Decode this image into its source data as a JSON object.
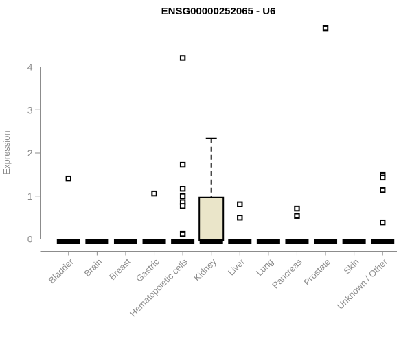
{
  "chart_data": {
    "type": "boxplot",
    "title": "ENSG00000252065 - U6",
    "xlabel": "",
    "ylabel": "Expression",
    "ylim": [
      0,
      4
    ],
    "yticks": [
      "0",
      "1",
      "2",
      "3",
      "4"
    ],
    "grid": false,
    "legend": null,
    "categories": [
      "Bladder",
      "Brain",
      "Breast",
      "Gastric",
      "Hematopoietic cells",
      "Kidney",
      "Liver",
      "Lung",
      "Pancreas",
      "Prostate",
      "Skin",
      "Unknown / Other"
    ],
    "series": [
      {
        "name": "Bladder",
        "low": 0,
        "q1": 0,
        "median": 0,
        "q3": 0,
        "high": 0,
        "outliers": [
          1.4
        ]
      },
      {
        "name": "Brain",
        "low": 0,
        "q1": 0,
        "median": 0,
        "q3": 0,
        "high": 0,
        "outliers": []
      },
      {
        "name": "Breast",
        "low": 0,
        "q1": 0,
        "median": 0,
        "q3": 0,
        "high": 0,
        "outliers": []
      },
      {
        "name": "Gastric",
        "low": 0,
        "q1": 0,
        "median": 0,
        "q3": 0,
        "high": 0,
        "outliers": [
          1.05
        ]
      },
      {
        "name": "Hematopoietic cells",
        "low": 0,
        "q1": 0,
        "median": 0,
        "q3": 0,
        "high": 0,
        "outliers": [
          4.2,
          1.72,
          1.16,
          0.99,
          0.85,
          0.76,
          0.11
        ]
      },
      {
        "name": "Kidney",
        "low": 0,
        "q1": 0,
        "median": 0,
        "q3": 0.96,
        "high": 2.33,
        "outliers": []
      },
      {
        "name": "Liver",
        "low": 0,
        "q1": 0,
        "median": 0,
        "q3": 0,
        "high": 0,
        "outliers": [
          0.8,
          0.49
        ]
      },
      {
        "name": "Lung",
        "low": 0,
        "q1": 0,
        "median": 0,
        "q3": 0,
        "high": 0,
        "outliers": []
      },
      {
        "name": "Pancreas",
        "low": 0,
        "q1": 0,
        "median": 0,
        "q3": 0,
        "high": 0,
        "outliers": [
          0.7,
          0.53
        ]
      },
      {
        "name": "Prostate",
        "low": 0,
        "q1": 0,
        "median": 0,
        "q3": 0,
        "high": 0,
        "outliers": [
          4.89
        ]
      },
      {
        "name": "Skin",
        "low": 0,
        "q1": 0,
        "median": 0,
        "q3": 0,
        "high": 0,
        "outliers": []
      },
      {
        "name": "Unknown / Other",
        "low": 0,
        "q1": 0,
        "median": 0,
        "q3": 0,
        "high": 0,
        "outliers": [
          1.48,
          1.42,
          1.13,
          0.38
        ]
      }
    ],
    "colors": {
      "box_fill": "#eae5c9",
      "box_stroke": "#000000",
      "zero_bar": "#000000",
      "axis": "#8c8c8c",
      "tick_label": "#8c8c8c",
      "title": "#000000",
      "outlier_stroke": "#000000",
      "outlier_fill": "#ffffff"
    }
  }
}
